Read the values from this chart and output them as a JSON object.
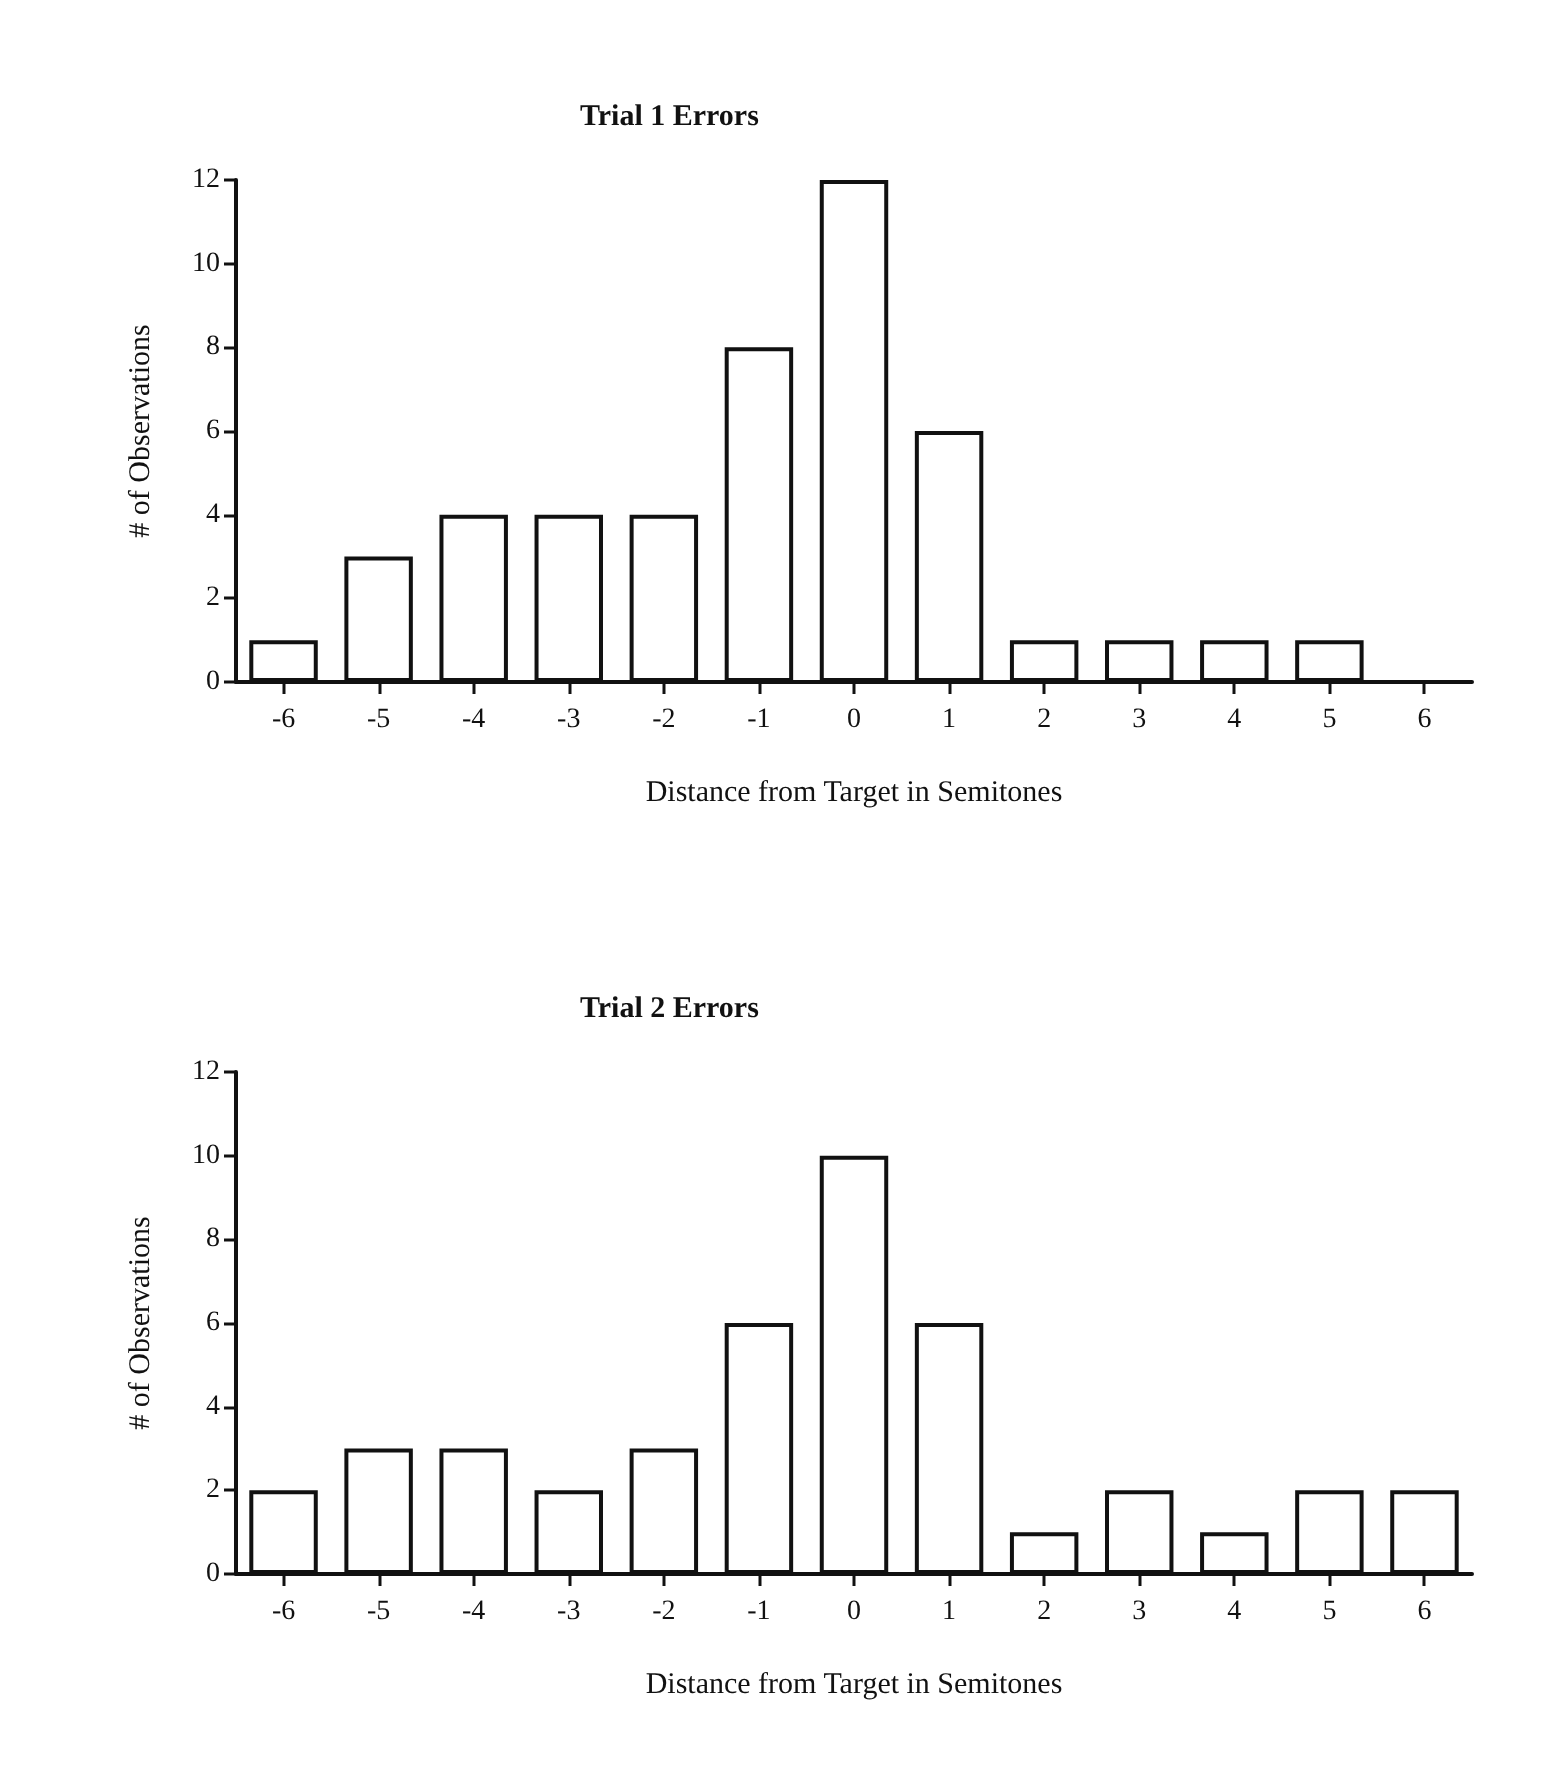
{
  "chart_data": [
    {
      "type": "bar",
      "title": "Trial 1 Errors",
      "xlabel": "Distance from Target in Semitones",
      "ylabel": "# of Observations",
      "categories": [
        "-6",
        "-5",
        "-4",
        "-3",
        "-2",
        "-1",
        "0",
        "1",
        "2",
        "3",
        "4",
        "5",
        "6"
      ],
      "values": [
        1,
        3,
        4,
        4,
        4,
        8,
        12,
        6,
        1,
        1,
        1,
        1,
        0
      ],
      "color": "#ffffff",
      "ylim": [
        0,
        12
      ],
      "yticks": [
        0,
        2,
        4,
        6,
        8,
        10,
        12
      ],
      "grid": false
    },
    {
      "type": "bar",
      "title": "Trial 2 Errors",
      "xlabel": "Distance from Target in Semitones",
      "ylabel": "# of Observations",
      "categories": [
        "-6",
        "-5",
        "-4",
        "-3",
        "-2",
        "-1",
        "0",
        "1",
        "2",
        "3",
        "4",
        "5",
        "6"
      ],
      "values": [
        2,
        3,
        3,
        2,
        3,
        6,
        10,
        6,
        1,
        2,
        1,
        2,
        2
      ],
      "color": "#ffffff",
      "ylim": [
        0,
        12
      ],
      "yticks": [
        0,
        2,
        4,
        6,
        8,
        10,
        12
      ],
      "grid": false
    }
  ]
}
